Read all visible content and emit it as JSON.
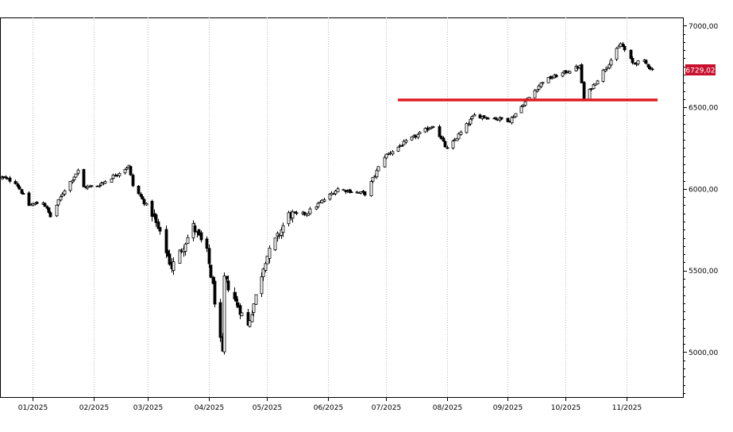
{
  "chart_data": {
    "type": "candlestick",
    "x_axis": {
      "tick_labels": [
        "01/2025",
        "02/2025",
        "03/2025",
        "04/2025",
        "05/2025",
        "06/2025",
        "07/2025",
        "08/2025",
        "09/2025",
        "10/2025",
        "11/2025"
      ]
    },
    "y_axis": {
      "position": "right",
      "tick_values": [
        5000,
        5500,
        6000,
        6500,
        7000
      ],
      "tick_labels": [
        "5000,00",
        "5500,00",
        "6000,00",
        "6500,00",
        "7000,00"
      ],
      "range": [
        4725,
        7050
      ]
    },
    "grid": "vertical dotted lines at month ticks",
    "last_price": {
      "value": 6729.02,
      "label": "6729,02",
      "color": "#c8102e"
    },
    "support_line": {
      "value": 6545,
      "from": "2025-07-07",
      "to": "2025-11-17",
      "color": "#e31b23"
    },
    "months_start": "2024-12-16",
    "anchors": [
      {
        "d": "2024-12-16",
        "v": 6070
      },
      {
        "d": "2024-12-23",
        "v": 6040
      },
      {
        "d": "2024-12-30",
        "v": 5900
      },
      {
        "d": "2025-01-06",
        "v": 5920
      },
      {
        "d": "2025-01-10",
        "v": 5830
      },
      {
        "d": "2025-01-17",
        "v": 5995
      },
      {
        "d": "2025-01-24",
        "v": 6110
      },
      {
        "d": "2025-01-27",
        "v": 6010
      },
      {
        "d": "2025-02-03",
        "v": 6020
      },
      {
        "d": "2025-02-10",
        "v": 6070
      },
      {
        "d": "2025-02-19",
        "v": 6140
      },
      {
        "d": "2025-02-21",
        "v": 6020
      },
      {
        "d": "2025-03-03",
        "v": 5850
      },
      {
        "d": "2025-03-10",
        "v": 5620
      },
      {
        "d": "2025-03-13",
        "v": 5520
      },
      {
        "d": "2025-03-24",
        "v": 5770
      },
      {
        "d": "2025-03-31",
        "v": 5610
      },
      {
        "d": "2025-04-03",
        "v": 5400
      },
      {
        "d": "2025-04-08",
        "v": 4980
      },
      {
        "d": "2025-04-09",
        "v": 5450
      },
      {
        "d": "2025-04-21",
        "v": 5160
      },
      {
        "d": "2025-04-30",
        "v": 5570
      },
      {
        "d": "2025-05-12",
        "v": 5840
      },
      {
        "d": "2025-05-21",
        "v": 5850
      },
      {
        "d": "2025-06-06",
        "v": 6000
      },
      {
        "d": "2025-06-20",
        "v": 5970
      },
      {
        "d": "2025-06-30",
        "v": 6200
      },
      {
        "d": "2025-07-10",
        "v": 6280
      },
      {
        "d": "2025-07-25",
        "v": 6390
      },
      {
        "d": "2025-08-01",
        "v": 6240
      },
      {
        "d": "2025-08-15",
        "v": 6450
      },
      {
        "d": "2025-09-02",
        "v": 6420
      },
      {
        "d": "2025-09-19",
        "v": 6660
      },
      {
        "d": "2025-10-08",
        "v": 6750
      },
      {
        "d": "2025-10-10",
        "v": 6550
      },
      {
        "d": "2025-10-24",
        "v": 6790
      },
      {
        "d": "2025-10-29",
        "v": 6890
      },
      {
        "d": "2025-11-04",
        "v": 6770
      },
      {
        "d": "2025-11-10",
        "v": 6780
      },
      {
        "d": "2025-11-14",
        "v": 6729
      }
    ]
  }
}
